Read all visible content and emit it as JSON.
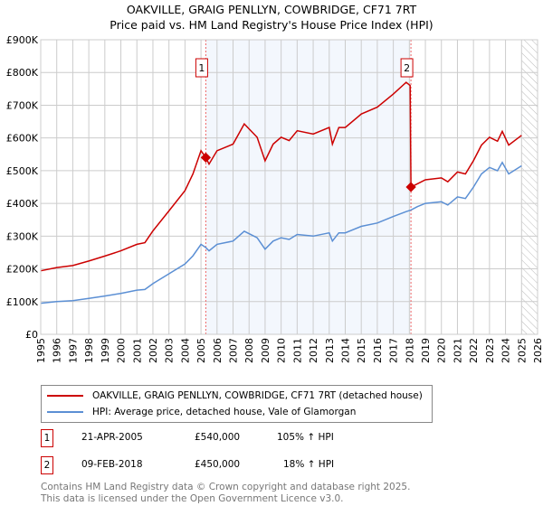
{
  "title": "OAKVILLE, GRAIG PENLLYN, COWBRIDGE, CF71 7RT",
  "subtitle": "Price paid vs. HM Land Registry's House Price Index (HPI)",
  "chart_data": {
    "type": "line",
    "title": "OAKVILLE, GRAIG PENLLYN, COWBRIDGE, CF71 7RT — Price paid vs. HM Land Registry's House Price Index (HPI)",
    "xlim": [
      1995,
      2026
    ],
    "ylim": [
      0,
      900000
    ],
    "x_ticks": [
      "1995",
      "1996",
      "1997",
      "1998",
      "1999",
      "2000",
      "2001",
      "2002",
      "2003",
      "2004",
      "2005",
      "2006",
      "2007",
      "2008",
      "2009",
      "2010",
      "2011",
      "2012",
      "2013",
      "2014",
      "2015",
      "2016",
      "2017",
      "2018",
      "2019",
      "2020",
      "2021",
      "2022",
      "2023",
      "2024",
      "2025",
      "2026"
    ],
    "y_ticks": [
      {
        "v": 0,
        "label": "£0"
      },
      {
        "v": 100000,
        "label": "£100K"
      },
      {
        "v": 200000,
        "label": "£200K"
      },
      {
        "v": 300000,
        "label": "£300K"
      },
      {
        "v": 400000,
        "label": "£400K"
      },
      {
        "v": 500000,
        "label": "£500K"
      },
      {
        "v": 600000,
        "label": "£600K"
      },
      {
        "v": 700000,
        "label": "£700K"
      },
      {
        "v": 800000,
        "label": "£800K"
      },
      {
        "v": 900000,
        "label": "£900K"
      }
    ],
    "grid": true,
    "shaded_period": [
      2005.3,
      2018.1
    ],
    "forecast_hatch_from": 2025.0,
    "series": [
      {
        "name": "OAKVILLE, GRAIG PENLLYN, COWBRIDGE, CF71 7RT (detached house)",
        "color": "#cc0000",
        "x": [
          1995,
          1996,
          1997,
          1998,
          1999,
          2000,
          2001,
          2001.5,
          2002,
          2003,
          2004,
          2004.5,
          2005,
          2005.3,
          2005.5,
          2006,
          2007,
          2007.7,
          2008.5,
          2009,
          2009.5,
          2010,
          2010.5,
          2011,
          2012,
          2013,
          2013.2,
          2013.6,
          2014,
          2015,
          2016,
          2017,
          2017.8,
          2018.05,
          2018.1,
          2018.5,
          2019,
          2020,
          2020.4,
          2021,
          2021.5,
          2022,
          2022.5,
          2023,
          2023.5,
          2023.8,
          2024.2,
          2025
        ],
        "y": [
          194000,
          204000,
          210000,
          224000,
          239000,
          255000,
          275000,
          280000,
          316000,
          377000,
          439000,
          490000,
          561000,
          540000,
          520000,
          561000,
          581000,
          643000,
          602000,
          530000,
          581000,
          602000,
          592000,
          622000,
          612000,
          632000,
          581000,
          632000,
          632000,
          673000,
          694000,
          734000,
          770000,
          760000,
          450000,
          460000,
          472000,
          478000,
          466000,
          496000,
          490000,
          531000,
          578000,
          602000,
          590000,
          620000,
          578000,
          608000
        ]
      },
      {
        "name": "HPI: Average price, detached house, Vale of Glamorgan",
        "color": "#5b8fd4",
        "x": [
          1995,
          1996,
          1997,
          1998,
          1999,
          2000,
          2001,
          2001.5,
          2002,
          2003,
          2004,
          2004.5,
          2005,
          2005.3,
          2005.5,
          2006,
          2007,
          2007.7,
          2008.5,
          2009,
          2009.5,
          2010,
          2010.5,
          2011,
          2012,
          2013,
          2013.2,
          2013.6,
          2014,
          2015,
          2016,
          2017,
          2017.8,
          2018.1,
          2018.5,
          2019,
          2020,
          2020.4,
          2021,
          2021.5,
          2022,
          2022.5,
          2023,
          2023.5,
          2023.8,
          2024.2,
          2025
        ],
        "y": [
          95000,
          100000,
          103000,
          110000,
          117000,
          125000,
          135000,
          137000,
          155000,
          185000,
          215000,
          240000,
          275000,
          265000,
          255000,
          275000,
          285000,
          315000,
          295000,
          260000,
          285000,
          295000,
          290000,
          305000,
          300000,
          310000,
          285000,
          310000,
          310000,
          330000,
          340000,
          360000,
          375000,
          380000,
          390000,
          400000,
          405000,
          395000,
          420000,
          415000,
          450000,
          490000,
          510000,
          500000,
          525000,
          490000,
          515000
        ]
      }
    ],
    "annotations": [
      {
        "label": "1",
        "x": 2005.3,
        "y": 540000
      },
      {
        "label": "2",
        "x": 2018.1,
        "y": 450000
      }
    ]
  },
  "legend": [
    {
      "label": "OAKVILLE, GRAIG PENLLYN, COWBRIDGE, CF71 7RT (detached house)",
      "color": "#cc0000"
    },
    {
      "label": "HPI: Average price, detached house, Vale of Glamorgan",
      "color": "#5b8fd4"
    }
  ],
  "sales": [
    {
      "num": "1",
      "date": "21-APR-2005",
      "price": "£540,000",
      "hpi": "105% ↑ HPI"
    },
    {
      "num": "2",
      "date": "09-FEB-2018",
      "price": "£450,000",
      "hpi": "18% ↑ HPI"
    }
  ],
  "footer": [
    "Contains HM Land Registry data © Crown copyright and database right 2025.",
    "This data is licensed under the Open Government Licence v3.0."
  ]
}
